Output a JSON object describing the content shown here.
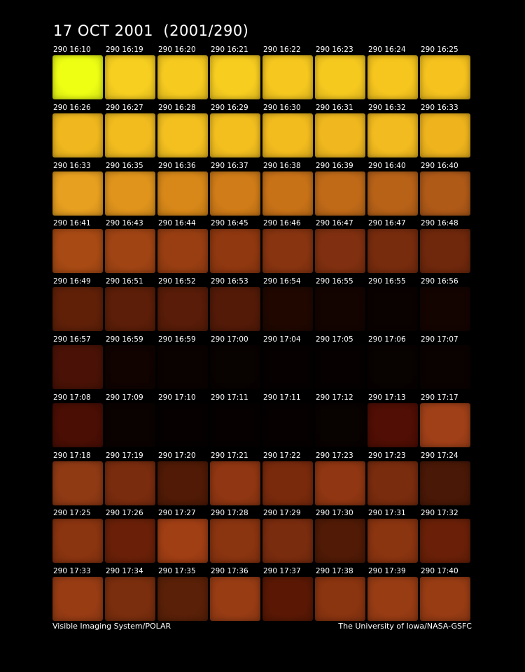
{
  "header": {
    "title": "17 OCT 2001  (2001/290)"
  },
  "panels": [
    [
      {
        "label": "290 16:10",
        "color": "#eeff14"
      },
      {
        "label": "290 16:19",
        "color": "#f7cf20"
      },
      {
        "label": "290 16:20",
        "color": "#f6ca1f"
      },
      {
        "label": "290 16:21",
        "color": "#f7cd20"
      },
      {
        "label": "290 16:22",
        "color": "#f6c81f"
      },
      {
        "label": "290 16:23",
        "color": "#f6c91f"
      },
      {
        "label": "290 16:24",
        "color": "#f6c51e"
      },
      {
        "label": "290 16:25",
        "color": "#f5c21e"
      }
    ],
    [
      {
        "label": "290 16:26",
        "color": "#f0b81e"
      },
      {
        "label": "290 16:27",
        "color": "#f2bc1f"
      },
      {
        "label": "290 16:28",
        "color": "#f3c01f"
      },
      {
        "label": "290 16:29",
        "color": "#f3bf1f"
      },
      {
        "label": "290 16:30",
        "color": "#f2bb1e"
      },
      {
        "label": "290 16:31",
        "color": "#f0b81e"
      },
      {
        "label": "290 16:32",
        "color": "#f2bb1f"
      },
      {
        "label": "290 16:33",
        "color": "#efb41d"
      }
    ],
    [
      {
        "label": "290 16:33",
        "color": "#e8a020"
      },
      {
        "label": "290 16:35",
        "color": "#e0941c"
      },
      {
        "label": "290 16:36",
        "color": "#d88818"
      },
      {
        "label": "290 16:37",
        "color": "#d07c18"
      },
      {
        "label": "290 16:38",
        "color": "#c87218"
      },
      {
        "label": "290 16:39",
        "color": "#c06a18"
      },
      {
        "label": "290 16:40",
        "color": "#b86218"
      },
      {
        "label": "290 16:40",
        "color": "#b05a18"
      }
    ],
    [
      {
        "label": "290 16:41",
        "color": "#a84a14"
      },
      {
        "label": "290 16:43",
        "color": "#a04414"
      },
      {
        "label": "290 16:44",
        "color": "#983e12"
      },
      {
        "label": "290 16:45",
        "color": "#903810"
      },
      {
        "label": "290 16:46",
        "color": "#883410"
      },
      {
        "label": "290 16:47",
        "color": "#803010"
      },
      {
        "label": "290 16:47",
        "color": "#782c0e"
      },
      {
        "label": "290 16:48",
        "color": "#70280c"
      }
    ],
    [
      {
        "label": "290 16:49",
        "color": "#602008"
      },
      {
        "label": "290 16:51",
        "color": "#5c1e08"
      },
      {
        "label": "290 16:52",
        "color": "#581c08"
      },
      {
        "label": "290 16:53",
        "color": "#541a08"
      },
      {
        "label": "290 16:54",
        "color": "#200800"
      },
      {
        "label": "290 16:55",
        "color": "#140400"
      },
      {
        "label": "290 16:55",
        "color": "#0a0200"
      },
      {
        "label": "290 16:56",
        "color": "#140400"
      }
    ],
    [
      {
        "label": "290 16:57",
        "color": "#4a1206"
      },
      {
        "label": "290 16:59",
        "color": "#100300"
      },
      {
        "label": "290 16:59",
        "color": "#0a0200"
      },
      {
        "label": "290 17:00",
        "color": "#080200"
      },
      {
        "label": "290 17:04",
        "color": "#060100"
      },
      {
        "label": "290 17:05",
        "color": "#060100"
      },
      {
        "label": "290 17:06",
        "color": "#080200"
      },
      {
        "label": "290 17:07",
        "color": "#0a0200"
      }
    ],
    [
      {
        "label": "290 17:08",
        "color": "#4a0e04"
      },
      {
        "label": "290 17:09",
        "color": "#0a0200"
      },
      {
        "label": "290 17:10",
        "color": "#060100"
      },
      {
        "label": "290 17:11",
        "color": "#060100"
      },
      {
        "label": "290 17:11",
        "color": "#060100"
      },
      {
        "label": "290 17:12",
        "color": "#080200"
      },
      {
        "label": "290 17:13",
        "color": "#500e04"
      },
      {
        "label": "290 17:17",
        "color": "#a04018"
      }
    ],
    [
      {
        "label": "290 17:18",
        "color": "#903a14"
      },
      {
        "label": "290 17:19",
        "color": "#7a2c0e"
      },
      {
        "label": "290 17:20",
        "color": "#501a06"
      },
      {
        "label": "290 17:21",
        "color": "#903612"
      },
      {
        "label": "290 17:22",
        "color": "#7a2a0c"
      },
      {
        "label": "290 17:23",
        "color": "#903612"
      },
      {
        "label": "290 17:23",
        "color": "#7a2c0e"
      },
      {
        "label": "290 17:24",
        "color": "#4a1806"
      }
    ],
    [
      {
        "label": "290 17:25",
        "color": "#8a3410"
      },
      {
        "label": "290 17:26",
        "color": "#6a2008"
      },
      {
        "label": "290 17:27",
        "color": "#a03e14"
      },
      {
        "label": "290 17:28",
        "color": "#8a3410"
      },
      {
        "label": "290 17:29",
        "color": "#7a2c0e"
      },
      {
        "label": "290 17:30",
        "color": "#501a06"
      },
      {
        "label": "290 17:31",
        "color": "#8a3410"
      },
      {
        "label": "290 17:32",
        "color": "#6a2008"
      }
    ],
    [
      {
        "label": "290 17:33",
        "color": "#983c14"
      },
      {
        "label": "290 17:34",
        "color": "#7a2e0e"
      },
      {
        "label": "290 17:35",
        "color": "#5a2008"
      },
      {
        "label": "290 17:36",
        "color": "#983c14"
      },
      {
        "label": "290 17:37",
        "color": "#5a1804"
      },
      {
        "label": "290 17:38",
        "color": "#8a3410"
      },
      {
        "label": "290 17:39",
        "color": "#983c14"
      },
      {
        "label": "290 17:40",
        "color": "#983c14"
      }
    ]
  ],
  "footer": {
    "left": "Visible Imaging System/POLAR",
    "right": "The University of Iowa/NASA-GSFC"
  }
}
